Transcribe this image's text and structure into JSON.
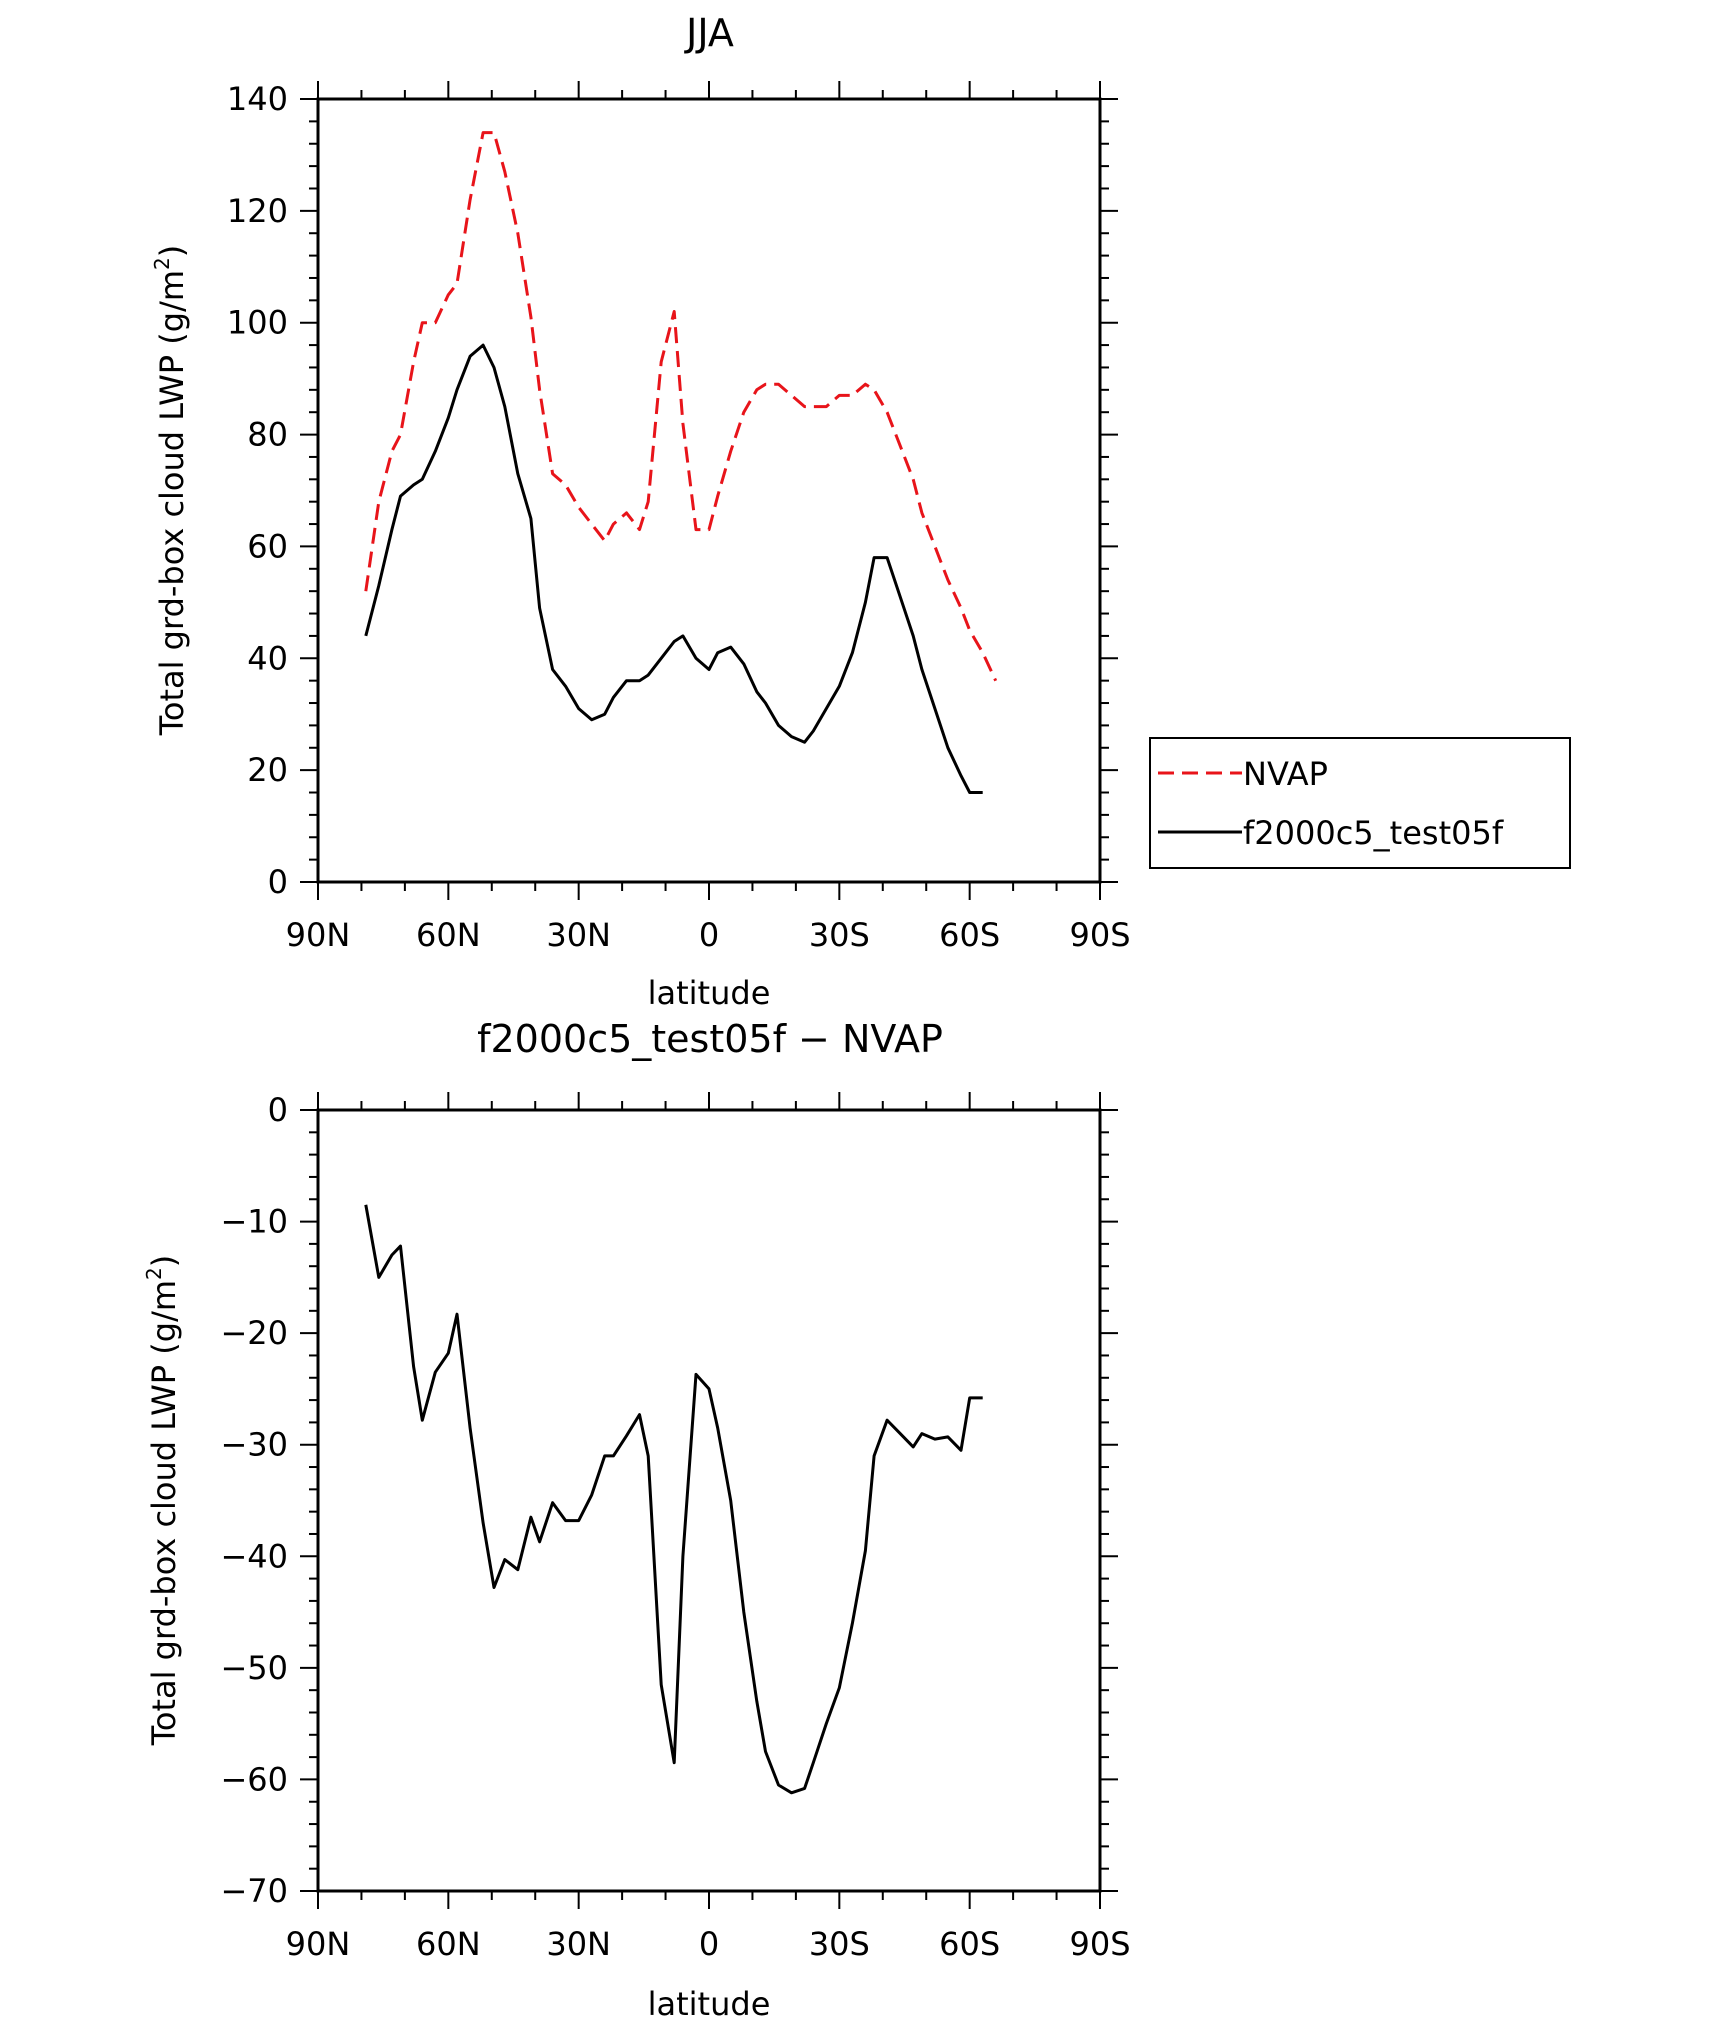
{
  "chart_data": [
    {
      "type": "line",
      "title": "JJA",
      "xlabel": "latitude",
      "ylabel": "Total grd-box cloud LWP (g/m",
      "ylabel_sup": "2",
      "ylabel_end": ")",
      "xlim": [
        90,
        -90
      ],
      "ylim": [
        0,
        140
      ],
      "xticks": [
        {
          "value": 90,
          "label": "90N"
        },
        {
          "value": 60,
          "label": "60N"
        },
        {
          "value": 30,
          "label": "30N"
        },
        {
          "value": 0,
          "label": "0"
        },
        {
          "value": -30,
          "label": "30S"
        },
        {
          "value": -60,
          "label": "60S"
        },
        {
          "value": -90,
          "label": "90S"
        }
      ],
      "yticks": [
        0,
        20,
        40,
        60,
        80,
        100,
        120,
        140
      ],
      "legend": {
        "position": "right",
        "entries": [
          "NVAP",
          "f2000c5_test05f"
        ]
      },
      "series": [
        {
          "name": "NVAP",
          "color": "#e8141a",
          "dashed": true,
          "x": [
            79.0,
            76.0,
            73.0,
            71.0,
            68.0,
            66.0,
            63.0,
            60.0,
            58.0,
            55.0,
            52.0,
            49.5,
            47.0,
            44.0,
            41.0,
            39.0,
            36.0,
            33.0,
            30.0,
            27.0,
            24.0,
            22.0,
            19.0,
            16.0,
            14.0,
            11.0,
            8.0,
            6.0,
            3.0,
            0.0,
            -2.0,
            -5.0,
            -8.0,
            -11.0,
            -13.0,
            -16.0,
            -19.0,
            -22.0,
            -24.0,
            -27.0,
            -30.0,
            -33.0,
            -36.0,
            -38.0,
            -41.0,
            -44.0,
            -47.0,
            -49.0,
            -52.0,
            -55.0,
            -58.0,
            -60.0,
            -63.0,
            -66.0
          ],
          "y": [
            52,
            68,
            77,
            80,
            93,
            100,
            100,
            105,
            107,
            122,
            134,
            134,
            127,
            116,
            101,
            88,
            73,
            71,
            67,
            64,
            61,
            64,
            66,
            63,
            68,
            93,
            102,
            82,
            63,
            63,
            69,
            77,
            84,
            88,
            89,
            89,
            87,
            85,
            85,
            85,
            87,
            87,
            89,
            88,
            84,
            78,
            72,
            66,
            60,
            54,
            49,
            45,
            41,
            36
          ]
        },
        {
          "name": "f2000c5_test05f",
          "color": "#000000",
          "dashed": false,
          "x": [
            79.0,
            76.0,
            73.0,
            71.0,
            68.0,
            66.0,
            63.0,
            60.0,
            58.0,
            55.0,
            52.0,
            49.5,
            47.0,
            44.0,
            41.0,
            39.0,
            36.0,
            33.0,
            30.0,
            27.0,
            24.0,
            22.0,
            19.0,
            16.0,
            14.0,
            11.0,
            8.0,
            6.0,
            3.0,
            0.0,
            -2.0,
            -5.0,
            -8.0,
            -11.0,
            -13.0,
            -16.0,
            -19.0,
            -22.0,
            -24.0,
            -27.0,
            -30.0,
            -33.0,
            -36.0,
            -38.0,
            -41.0,
            -44.0,
            -47.0,
            -49.0,
            -52.0,
            -55.0,
            -58.0,
            -60.0,
            -63.0
          ],
          "y": [
            44,
            53,
            63,
            69,
            71,
            72,
            77,
            83,
            88,
            94,
            96,
            92,
            85,
            73,
            65,
            49,
            38,
            35,
            31,
            29,
            30,
            33,
            36,
            36,
            37,
            40,
            43,
            44,
            40,
            38,
            41,
            42,
            39,
            34,
            32,
            28,
            26,
            25,
            27,
            31,
            35,
            41,
            50,
            58,
            58,
            51,
            44,
            38,
            31,
            24,
            19,
            16,
            16
          ]
        }
      ]
    },
    {
      "type": "line",
      "title": "f2000c5_test05f − NVAP",
      "xlabel": "latitude",
      "ylabel": "Total grd-box cloud LWP (g/m",
      "ylabel_sup": "2",
      "ylabel_end": ")",
      "xlim": [
        90,
        -90
      ],
      "ylim": [
        -70,
        0
      ],
      "xticks": [
        {
          "value": 90,
          "label": "90N"
        },
        {
          "value": 60,
          "label": "60N"
        },
        {
          "value": 30,
          "label": "30N"
        },
        {
          "value": 0,
          "label": "0"
        },
        {
          "value": -30,
          "label": "30S"
        },
        {
          "value": -60,
          "label": "60S"
        },
        {
          "value": -90,
          "label": "90S"
        }
      ],
      "yticks": [
        0,
        -10,
        -20,
        -30,
        -40,
        -50,
        -60,
        -70
      ],
      "series": [
        {
          "name": "f2000c5_test05f - NVAP",
          "color": "#000000",
          "dashed": false,
          "x": [
            79.0,
            76.0,
            73.0,
            71.0,
            68.0,
            66.0,
            63.0,
            60.0,
            58.0,
            55.0,
            52.0,
            49.5,
            47.0,
            44.0,
            41.0,
            39.0,
            36.0,
            33.0,
            30.0,
            27.0,
            24.0,
            22.0,
            19.0,
            16.0,
            14.0,
            11.0,
            8.0,
            6.0,
            3.0,
            0.0,
            -2.0,
            -5.0,
            -8.0,
            -11.0,
            -13.0,
            -16.0,
            -19.0,
            -22.0,
            -24.0,
            -27.0,
            -30.0,
            -33.0,
            -36.0,
            -38.0,
            -41.0,
            -44.0,
            -47.0,
            -49.0,
            -52.0,
            -55.0,
            -58.0,
            -60.0,
            -63.0
          ],
          "y": [
            -8.5,
            -15.0,
            -13.0,
            -12.2,
            -23.0,
            -27.8,
            -23.5,
            -21.8,
            -18.3,
            -28.5,
            -37.0,
            -42.8,
            -40.3,
            -41.2,
            -36.5,
            -38.7,
            -35.2,
            -36.8,
            -36.8,
            -34.5,
            -31.0,
            -31.0,
            -29.2,
            -27.3,
            -31.0,
            -51.5,
            -58.5,
            -40.0,
            -23.7,
            -25.0,
            -28.5,
            -35.0,
            -45.0,
            -53.0,
            -57.5,
            -60.5,
            -61.2,
            -60.8,
            -58.5,
            -55.0,
            -51.8,
            -46.0,
            -39.5,
            -31.0,
            -27.8,
            -29.0,
            -30.2,
            -29.0,
            -29.5,
            -29.3,
            -30.5,
            -25.8,
            -25.8
          ]
        }
      ]
    }
  ]
}
